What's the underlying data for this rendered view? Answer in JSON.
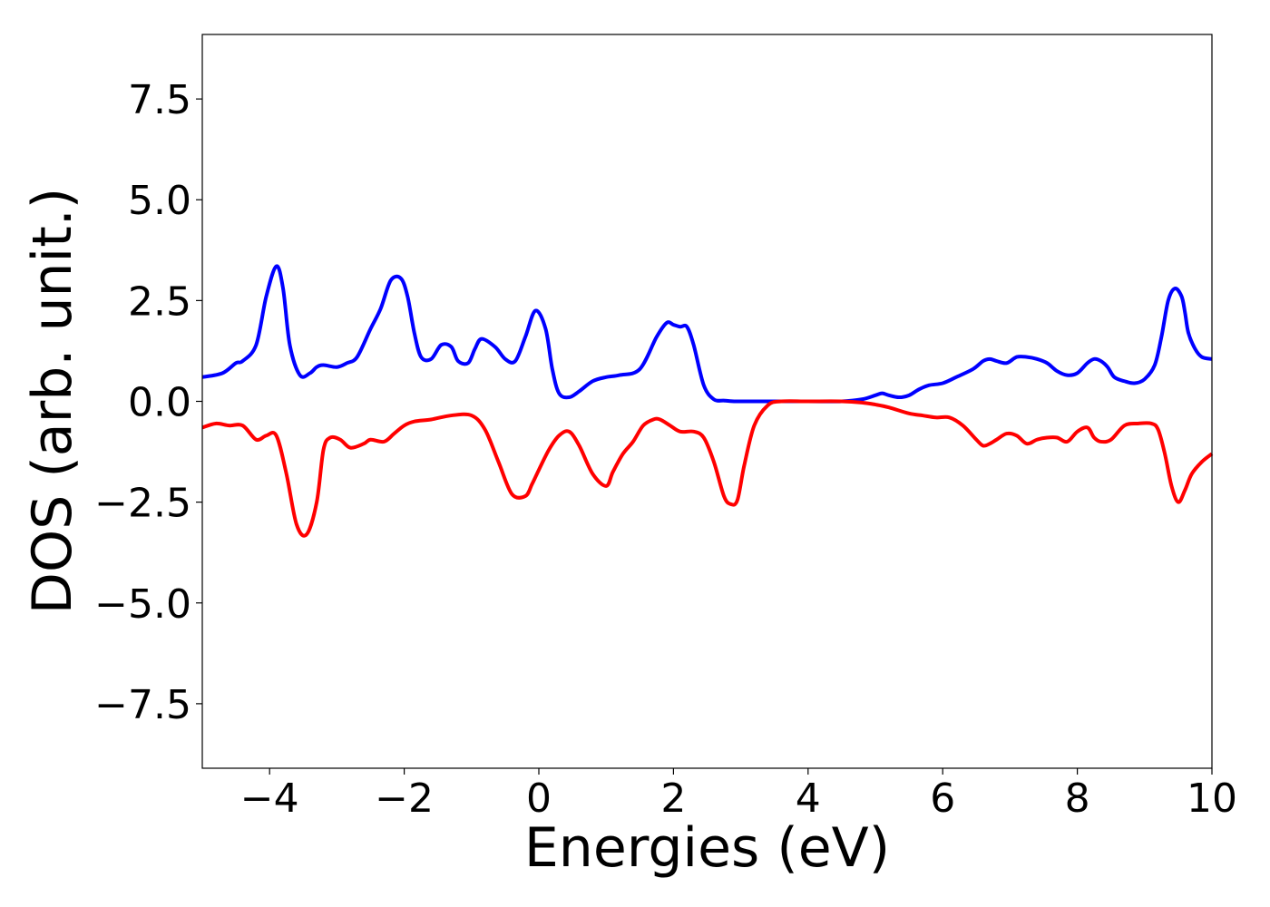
{
  "chart_data": {
    "type": "line",
    "title": "",
    "xlabel": "Energies (eV)",
    "ylabel": "DOS (arb. unit.)",
    "xlim": [
      -5,
      10
    ],
    "ylim": [
      -9.1,
      9.1
    ],
    "xticks": [
      -4,
      -2,
      0,
      2,
      4,
      6,
      8,
      10
    ],
    "xtick_labels": [
      "−4",
      "−2",
      "0",
      "2",
      "4",
      "6",
      "8",
      "10"
    ],
    "yticks": [
      7.5,
      5.0,
      2.5,
      0.0,
      -2.5,
      -5.0,
      -7.5
    ],
    "ytick_labels": [
      "7.5",
      "5.0",
      "2.5",
      "0.0",
      "−2.5",
      "−5.0",
      "−7.5"
    ],
    "grid": false,
    "legend": "none",
    "series": [
      {
        "color": "#0000ff",
        "x": [
          -5.0,
          -4.7,
          -4.5,
          -4.4,
          -4.2,
          -4.05,
          -3.9,
          -3.8,
          -3.7,
          -3.55,
          -3.4,
          -3.3,
          -3.2,
          -3.0,
          -2.85,
          -2.7,
          -2.5,
          -2.35,
          -2.2,
          -2.05,
          -1.95,
          -1.85,
          -1.75,
          -1.6,
          -1.45,
          -1.3,
          -1.2,
          -1.05,
          -0.95,
          -0.85,
          -0.65,
          -0.5,
          -0.35,
          -0.2,
          -0.05,
          0.1,
          0.2,
          0.3,
          0.45,
          0.6,
          0.8,
          1.0,
          1.2,
          1.5,
          1.75,
          1.9,
          2.0,
          2.1,
          2.2,
          2.3,
          2.45,
          2.6,
          2.75,
          2.9,
          3.1,
          3.5,
          4.0,
          4.5,
          4.8,
          5.0,
          5.1,
          5.2,
          5.35,
          5.5,
          5.65,
          5.8,
          6.0,
          6.2,
          6.45,
          6.6,
          6.7,
          6.8,
          6.95,
          7.1,
          7.25,
          7.4,
          7.55,
          7.7,
          7.85,
          8.0,
          8.15,
          8.25,
          8.35,
          8.45,
          8.55,
          8.7,
          8.85,
          9.0,
          9.15,
          9.25,
          9.35,
          9.45,
          9.55,
          9.6,
          9.65,
          9.75,
          9.85,
          10.0
        ],
        "y": [
          0.6,
          0.7,
          0.95,
          1.0,
          1.4,
          2.6,
          3.35,
          2.8,
          1.4,
          0.65,
          0.7,
          0.85,
          0.9,
          0.85,
          0.95,
          1.1,
          1.8,
          2.3,
          3.0,
          3.05,
          2.6,
          1.7,
          1.1,
          1.05,
          1.4,
          1.35,
          1.0,
          0.95,
          1.3,
          1.55,
          1.35,
          1.05,
          1.0,
          1.6,
          2.25,
          1.8,
          0.8,
          0.2,
          0.1,
          0.25,
          0.5,
          0.6,
          0.65,
          0.8,
          1.6,
          1.95,
          1.9,
          1.85,
          1.85,
          1.4,
          0.4,
          0.05,
          0.02,
          0.0,
          0.0,
          0.0,
          0.0,
          0.0,
          0.05,
          0.15,
          0.2,
          0.15,
          0.1,
          0.15,
          0.3,
          0.4,
          0.45,
          0.6,
          0.8,
          1.0,
          1.05,
          1.0,
          0.95,
          1.1,
          1.1,
          1.05,
          0.95,
          0.75,
          0.65,
          0.7,
          0.95,
          1.05,
          1.0,
          0.85,
          0.6,
          0.5,
          0.45,
          0.55,
          0.9,
          1.6,
          2.5,
          2.8,
          2.6,
          2.2,
          1.7,
          1.3,
          1.1,
          1.05
        ]
      },
      {
        "color": "#ff0000",
        "x": [
          -5.0,
          -4.8,
          -4.6,
          -4.4,
          -4.2,
          -4.05,
          -3.9,
          -3.75,
          -3.6,
          -3.45,
          -3.3,
          -3.2,
          -3.1,
          -2.95,
          -2.8,
          -2.6,
          -2.5,
          -2.3,
          -2.15,
          -2.0,
          -1.85,
          -1.6,
          -1.3,
          -1.0,
          -0.8,
          -0.6,
          -0.4,
          -0.2,
          -0.1,
          0.0,
          0.15,
          0.3,
          0.45,
          0.6,
          0.8,
          1.0,
          1.1,
          1.25,
          1.4,
          1.55,
          1.7,
          1.8,
          1.95,
          2.1,
          2.3,
          2.45,
          2.6,
          2.75,
          2.85,
          2.95,
          3.05,
          3.2,
          3.4,
          3.6,
          4.0,
          4.5,
          4.8,
          5.0,
          5.2,
          5.5,
          5.7,
          5.9,
          6.1,
          6.3,
          6.5,
          6.6,
          6.7,
          6.8,
          6.95,
          7.1,
          7.25,
          7.4,
          7.55,
          7.7,
          7.85,
          8.0,
          8.15,
          8.25,
          8.35,
          8.5,
          8.7,
          8.9,
          9.1,
          9.2,
          9.3,
          9.4,
          9.5,
          9.6,
          9.7,
          9.85,
          10.0
        ],
        "y": [
          -0.65,
          -0.55,
          -0.6,
          -0.6,
          -0.95,
          -0.85,
          -0.85,
          -1.8,
          -3.05,
          -3.3,
          -2.5,
          -1.2,
          -0.9,
          -0.95,
          -1.15,
          -1.05,
          -0.95,
          -1.0,
          -0.8,
          -0.6,
          -0.5,
          -0.45,
          -0.35,
          -0.35,
          -0.7,
          -1.5,
          -2.3,
          -2.35,
          -2.05,
          -1.7,
          -1.2,
          -0.85,
          -0.75,
          -1.1,
          -1.8,
          -2.1,
          -1.75,
          -1.3,
          -1.0,
          -0.6,
          -0.45,
          -0.45,
          -0.6,
          -0.75,
          -0.75,
          -0.9,
          -1.5,
          -2.35,
          -2.55,
          -2.45,
          -1.6,
          -0.6,
          -0.1,
          0.0,
          0.0,
          0.0,
          -0.03,
          -0.08,
          -0.15,
          -0.3,
          -0.35,
          -0.4,
          -0.4,
          -0.6,
          -0.95,
          -1.1,
          -1.05,
          -0.95,
          -0.8,
          -0.85,
          -1.05,
          -0.95,
          -0.9,
          -0.9,
          -1.0,
          -0.75,
          -0.65,
          -0.9,
          -1.0,
          -0.95,
          -0.6,
          -0.55,
          -0.55,
          -0.7,
          -1.3,
          -2.1,
          -2.5,
          -2.2,
          -1.8,
          -1.5,
          -1.3
        ]
      }
    ]
  }
}
